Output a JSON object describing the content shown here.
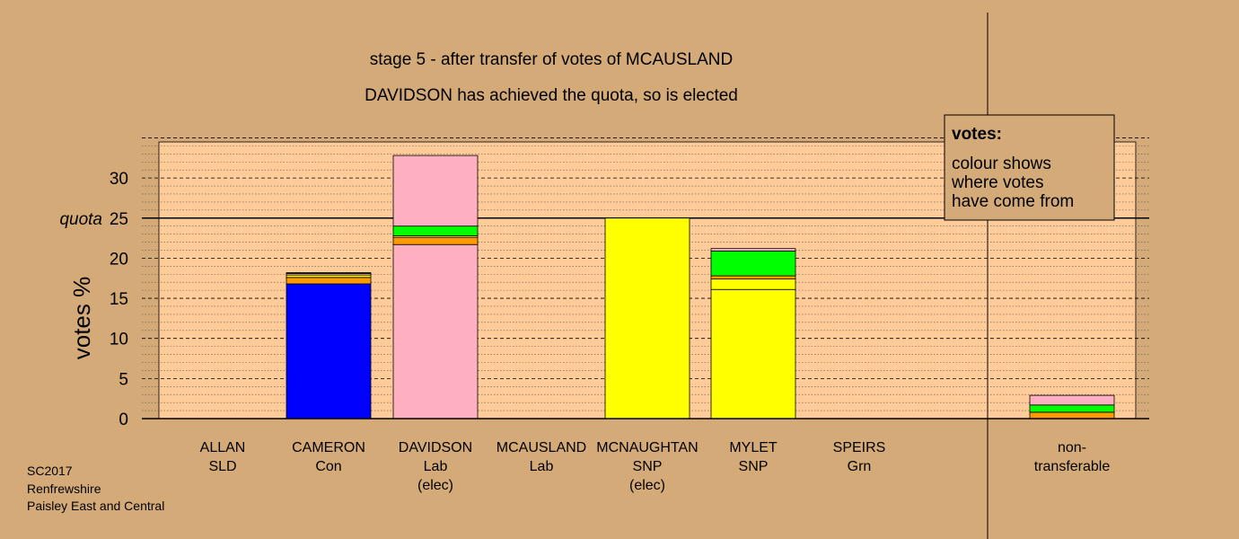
{
  "chart_data": {
    "type": "bar",
    "title": "stage 5 - after transfer of votes of MCAUSLAND",
    "subtitle": "DAVIDSON has achieved the quota, so is elected",
    "ylabel": "votes %",
    "ylim": [
      0,
      35
    ],
    "yticks": [
      "0",
      "5",
      "10",
      "15",
      "20",
      "25",
      "30"
    ],
    "quota": 25,
    "quota_label": "quota",
    "candidates": [
      {
        "line1": "ALLAN",
        "line2": "SLD",
        "line3": "",
        "segments": []
      },
      {
        "line1": "CAMERON",
        "line2": "Con",
        "line3": "",
        "segments": [
          {
            "value": 16.8,
            "color": "#0000FF"
          },
          {
            "value": 0.8,
            "color": "#FF9900"
          },
          {
            "value": 0.3,
            "color": "#FFFF00"
          },
          {
            "value": 0.2,
            "color": "#FFB0C0"
          },
          {
            "value": 0.1,
            "color": "#00FF00"
          }
        ]
      },
      {
        "line1": "DAVIDSON",
        "line2": "Lab",
        "line3": "(elec)",
        "segments": [
          {
            "value": 21.7,
            "color": "#FFB0C0"
          },
          {
            "value": 0.9,
            "color": "#FF9900"
          },
          {
            "value": 0.2,
            "color": "#FFFF00"
          },
          {
            "value": 1.2,
            "color": "#00FF00"
          },
          {
            "value": 8.8,
            "color": "#FFB0C0"
          }
        ]
      },
      {
        "line1": "MCAUSLAND",
        "line2": "Lab",
        "line3": "",
        "segments": []
      },
      {
        "line1": "MCNAUGHTAN",
        "line2": "SNP",
        "line3": "(elec)",
        "segments": [
          {
            "value": 25.0,
            "color": "#FFFF00"
          }
        ]
      },
      {
        "line1": "MYLET",
        "line2": "SNP",
        "line3": "",
        "segments": [
          {
            "value": 16.1,
            "color": "#FFFF00"
          },
          {
            "value": 1.3,
            "color": "#FFFF00"
          },
          {
            "value": 0.4,
            "color": "#FF9900"
          },
          {
            "value": 3.1,
            "color": "#00FF00"
          },
          {
            "value": 0.3,
            "color": "#FFB0C0"
          }
        ]
      },
      {
        "line1": "SPEIRS",
        "line2": "Grn",
        "line3": "",
        "segments": []
      },
      {
        "line1": "non-",
        "line2": "transferable",
        "line3": "",
        "segments": [
          {
            "value": 0.8,
            "color": "#FF9900"
          },
          {
            "value": 0.9,
            "color": "#00FF00"
          },
          {
            "value": 1.2,
            "color": "#FFB0C0"
          }
        ]
      }
    ],
    "legend": {
      "title": "votes:",
      "line1": "colour shows",
      "line2": "where votes",
      "line3": "have come from"
    },
    "colors": {
      "background": "#D4AA78",
      "plot_area": "#FFCC99",
      "quota_line": "#000000"
    }
  },
  "footer": {
    "line1": "SC2017",
    "line2": "Renfrewshire",
    "line3": "Paisley East and Central"
  }
}
